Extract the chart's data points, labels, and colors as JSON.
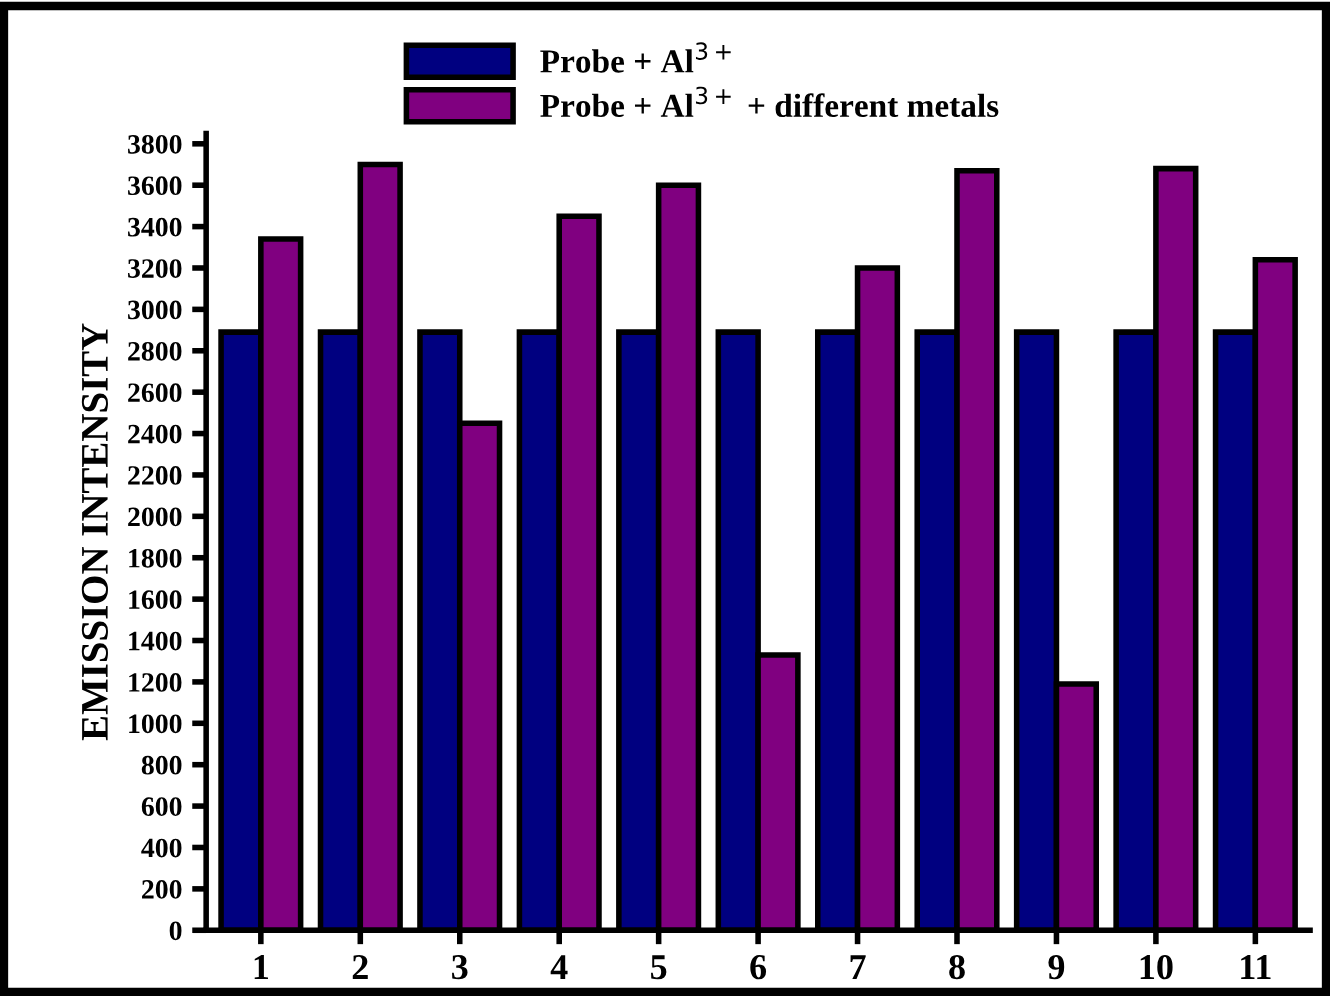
{
  "chart_data": {
    "type": "bar",
    "ylabel": "EMISSION INTENSITY",
    "categories": [
      "1",
      "2",
      "3",
      "4",
      "5",
      "6",
      "7",
      "8",
      "9",
      "10",
      "11"
    ],
    "series": [
      {
        "name": "Probe + Al$^{3+}$",
        "color": "#000080",
        "values": [
          2890,
          2890,
          2890,
          2890,
          2890,
          2890,
          2890,
          2890,
          2890,
          2890,
          2890
        ]
      },
      {
        "name": "Probe + Al$^{3+}$ + different metals",
        "color": "#800080",
        "values": [
          3340,
          3700,
          2450,
          3450,
          3600,
          1330,
          3200,
          3670,
          1190,
          3680,
          3240
        ]
      }
    ],
    "ylim": [
      0,
      3850
    ],
    "yticks": [
      0,
      200,
      400,
      600,
      800,
      1000,
      1200,
      1400,
      1600,
      1800,
      2000,
      2200,
      2400,
      2600,
      2800,
      3000,
      3200,
      3400,
      3600,
      3800
    ],
    "grid": false,
    "legend": "top"
  }
}
